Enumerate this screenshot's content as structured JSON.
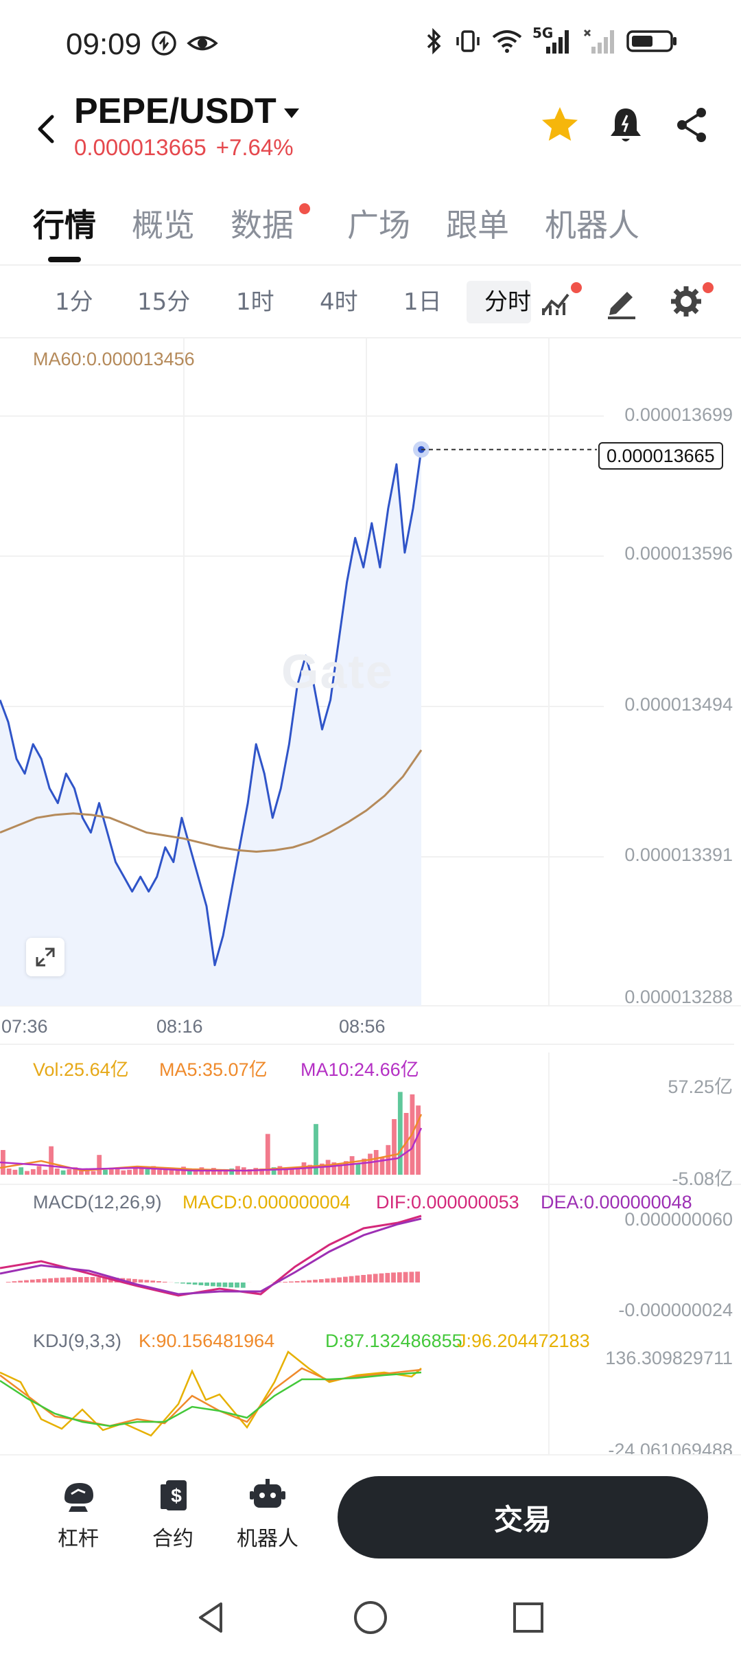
{
  "status_bar": {
    "time": "09:09",
    "network": "5G"
  },
  "header": {
    "pair": "PEPE/USDT",
    "price": "0.000013665",
    "change": "+7.64%"
  },
  "main_tabs": [
    "行情",
    "概览",
    "数据",
    "广场",
    "跟单",
    "机器人"
  ],
  "time_tabs": [
    "1分",
    "15分",
    "1时",
    "4时",
    "1日",
    "分时"
  ],
  "chart": {
    "ma60_label": "MA60:0.000013456",
    "y_ticks": [
      "0.000013699",
      "0.000013596",
      "0.000013494",
      "0.000013391",
      "0.000013288"
    ],
    "current_price_tag": "0.000013665",
    "x_ticks": [
      "07:36",
      "08:16",
      "08:56"
    ],
    "watermark": "Gate"
  },
  "volume": {
    "vol_label": "Vol:25.64亿",
    "ma5_label": "MA5:35.07亿",
    "ma10_label": "MA10:24.66亿",
    "y_max": "57.25亿",
    "y_min": "-5.08亿"
  },
  "macd": {
    "name": "MACD(12,26,9)",
    "macd_label": "MACD:0.000000004",
    "dif_label": "DIF:0.000000053",
    "dea_label": "DEA:0.000000048",
    "y_max": "0.000000060",
    "y_min": "-0.000000024"
  },
  "kdj": {
    "name": "KDJ(9,3,3)",
    "k_label": "K:90.156481964",
    "d_label": "D:87.132486855",
    "j_label": "J:96.204472183",
    "y_max": "136.309829711",
    "y_min": "-24.061069488"
  },
  "bottom_bar": {
    "items": [
      "杠杆",
      "合约",
      "机器人"
    ],
    "trade_label": "交易"
  },
  "colors": {
    "price_red": "#e5484d",
    "line_blue": "#2f54c8",
    "ma60": "#b58a5a",
    "vol_yellow": "#e6a817",
    "ma5_orange": "#ef8a2b",
    "ma10_purple": "#b42fc4"
  },
  "chart_data": {
    "type": "line",
    "title": "",
    "x_ticks": [
      "07:36",
      "08:16",
      "08:56"
    ],
    "ylim": [
      1.3288e-05,
      1.3699e-05
    ],
    "series": [
      {
        "name": "",
        "values": [
          1.349e-05,
          1.3475e-05,
          1.345e-05,
          1.344e-05,
          1.346e-05,
          1.345e-05,
          1.343e-05,
          1.342e-05,
          1.344e-05,
          1.343e-05,
          1.341e-05,
          1.34e-05,
          1.342e-05,
          1.34e-05,
          1.338e-05,
          1.337e-05,
          1.336e-05,
          1.337e-05,
          1.336e-05,
          1.337e-05,
          1.339e-05,
          1.338e-05,
          1.341e-05,
          1.339e-05,
          1.337e-05,
          1.335e-05,
          1.331e-05,
          1.333e-05,
          1.336e-05,
          1.339e-05,
          1.342e-05,
          1.346e-05,
          1.344e-05,
          1.341e-05,
          1.343e-05,
          1.346e-05,
          1.35e-05,
          1.352e-05,
          1.35e-05,
          1.347e-05,
          1.349e-05,
          1.353e-05,
          1.357e-05,
          1.36e-05,
          1.358e-05,
          1.361e-05,
          1.358e-05,
          1.362e-05,
          1.365e-05,
          1.359e-05,
          1.362e-05,
          1.366e-05
        ]
      },
      {
        "name": "MA60",
        "values": [
          1.34e-05,
          1.3405e-05,
          1.341e-05,
          1.3412e-05,
          1.3413e-05,
          1.3412e-05,
          1.341e-05,
          1.3405e-05,
          1.34e-05,
          1.3398e-05,
          1.3396e-05,
          1.3393e-05,
          1.339e-05,
          1.3388e-05,
          1.3387e-05,
          1.3388e-05,
          1.339e-05,
          1.3394e-05,
          1.34e-05,
          1.3407e-05,
          1.3415e-05,
          1.3425e-05,
          1.3438e-05,
          1.3456e-05
        ]
      }
    ]
  }
}
